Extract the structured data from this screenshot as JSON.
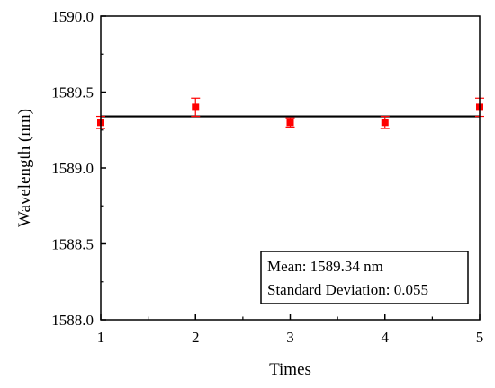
{
  "chart_data": {
    "type": "scatter",
    "title": "",
    "xlabel": "Times",
    "ylabel": "Wavelength (nm)",
    "xlim": [
      1,
      5
    ],
    "ylim": [
      1588.0,
      1590.0
    ],
    "x_ticks": [
      "1",
      "2",
      "3",
      "4",
      "5"
    ],
    "y_ticks": [
      "1588.0",
      "1588.5",
      "1589.0",
      "1589.5",
      "1590.0"
    ],
    "x_tick_values": [
      1,
      2,
      3,
      4,
      5
    ],
    "y_tick_values": [
      1588.0,
      1588.5,
      1589.0,
      1589.5,
      1590.0
    ],
    "grid": false,
    "marker_color": "#ff0000",
    "series": [
      {
        "x": [
          1,
          2,
          3,
          4,
          5
        ],
        "y": [
          1589.3,
          1589.4,
          1589.3,
          1589.3,
          1589.4
        ],
        "error": [
          0.04,
          0.06,
          0.03,
          0.04,
          0.06
        ]
      }
    ],
    "mean_line": {
      "value": 1589.34,
      "color": "#000000"
    },
    "annotation": {
      "line1": "Mean: 1589.34 nm",
      "line2": "Standard Deviation: 0.055",
      "placement": "bottom-right"
    }
  }
}
